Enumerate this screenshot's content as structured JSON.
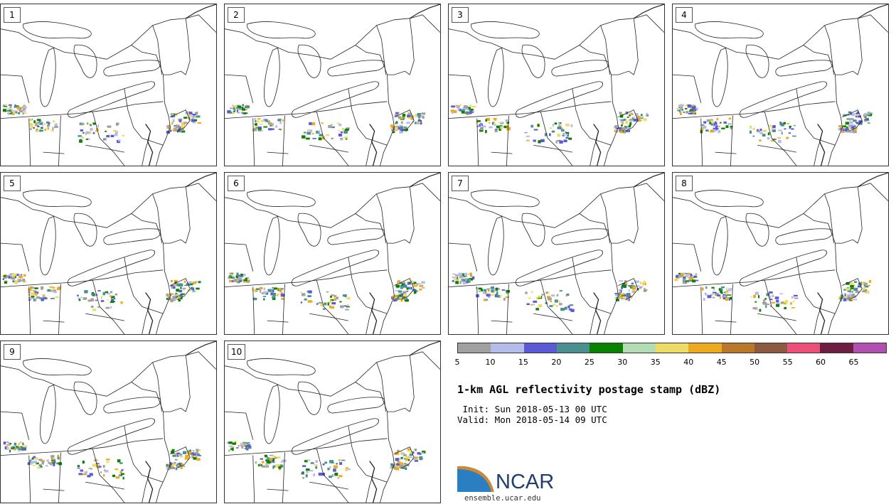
{
  "panels": [
    {
      "label": "1"
    },
    {
      "label": "2"
    },
    {
      "label": "3"
    },
    {
      "label": "4"
    },
    {
      "label": "5"
    },
    {
      "label": "6"
    },
    {
      "label": "7"
    },
    {
      "label": "8"
    },
    {
      "label": "9"
    },
    {
      "label": "10"
    }
  ],
  "colorbar": {
    "colors": [
      "#a0a0a0",
      "#b4bdea",
      "#5a5ad6",
      "#4a9090",
      "#0a8200",
      "#b4dcb4",
      "#ecdc66",
      "#eeaa1e",
      "#b87828",
      "#8c5a40",
      "#ec5078",
      "#6e1e40",
      "#b250b2"
    ],
    "ticks": [
      "5",
      "10",
      "15",
      "20",
      "25",
      "30",
      "35",
      "40",
      "45",
      "50",
      "55",
      "60",
      "65"
    ]
  },
  "title": "1-km AGL reflectivity postage stamp (dBZ)",
  "init_text": " Init: Sun 2018-05-13 00 UTC",
  "valid_text": "Valid: Mon 2018-05-14 09 UTC",
  "logo": {
    "name": "NCAR",
    "url": "ensemble.ucar.edu"
  }
}
